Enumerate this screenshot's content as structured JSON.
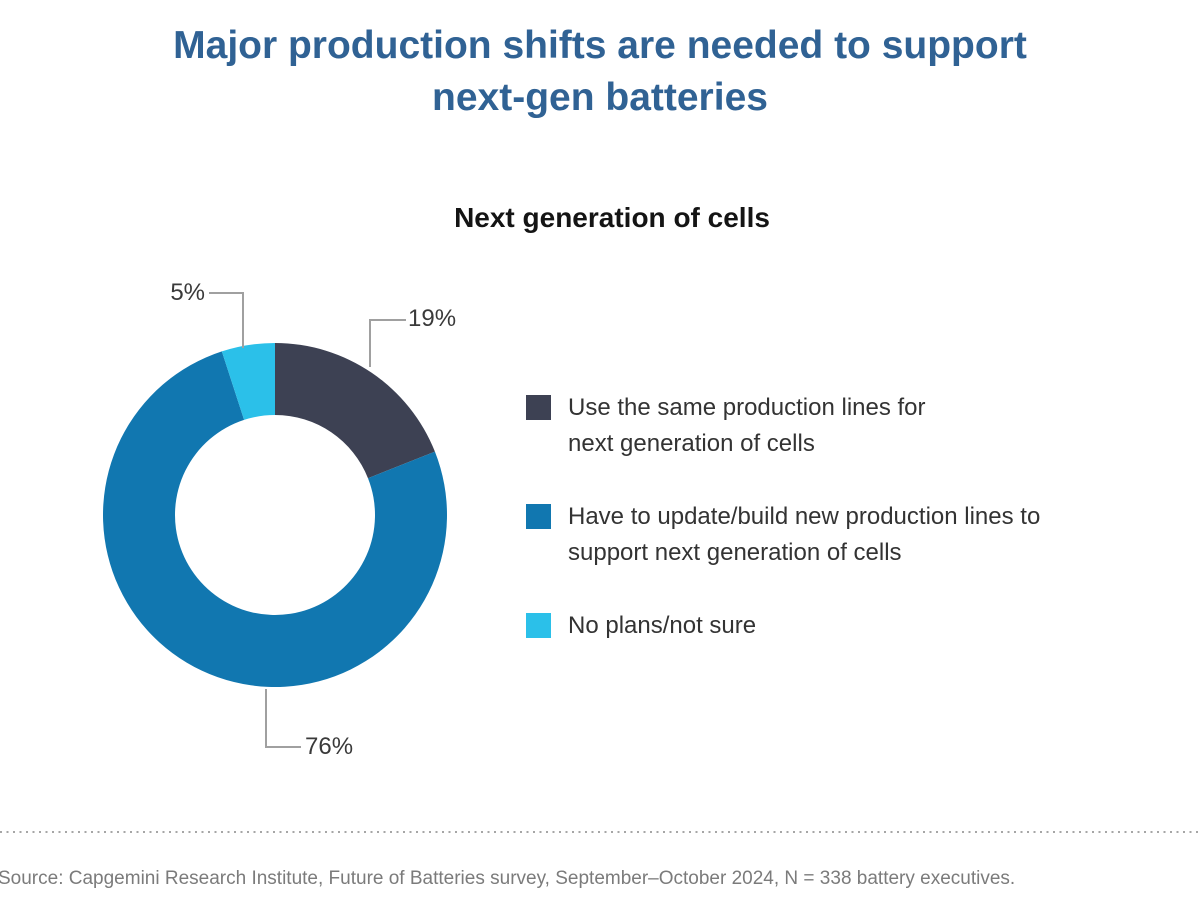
{
  "header": {
    "title_lines": [
      "Major production shifts are needed to support",
      "next-gen batteries"
    ],
    "title_color": "#306294"
  },
  "chart_data": {
    "type": "pie",
    "subtype": "donut",
    "title": "Next generation of cells",
    "start_angle": "top",
    "direction": "clockwise",
    "inner_radius_ratio": 0.58,
    "legend_position": "right",
    "slices": [
      {
        "label": "19%",
        "value": 19,
        "color": "#3d4153",
        "legend_lines": [
          "Use the same production lines for",
          "next generation of cells"
        ]
      },
      {
        "label": "76%",
        "value": 76,
        "color": "#1177b0",
        "legend_lines": [
          "Have to update/build new production lines to",
          "support next generation of cells"
        ]
      },
      {
        "label": "5%",
        "value": 5,
        "color": "#2bc0e9",
        "legend_lines": [
          "No plans/not sure"
        ]
      }
    ]
  },
  "footer": {
    "source": "Source: Capgemini Research Institute, Future of Batteries survey, September–October 2024, N = 338 battery executives."
  },
  "colors": {
    "leader_line": "#a0a0a0",
    "label_text": "#3a3a3a",
    "legend_text": "#333333",
    "source_text": "#7b7b7b",
    "background": "#ffffff"
  }
}
